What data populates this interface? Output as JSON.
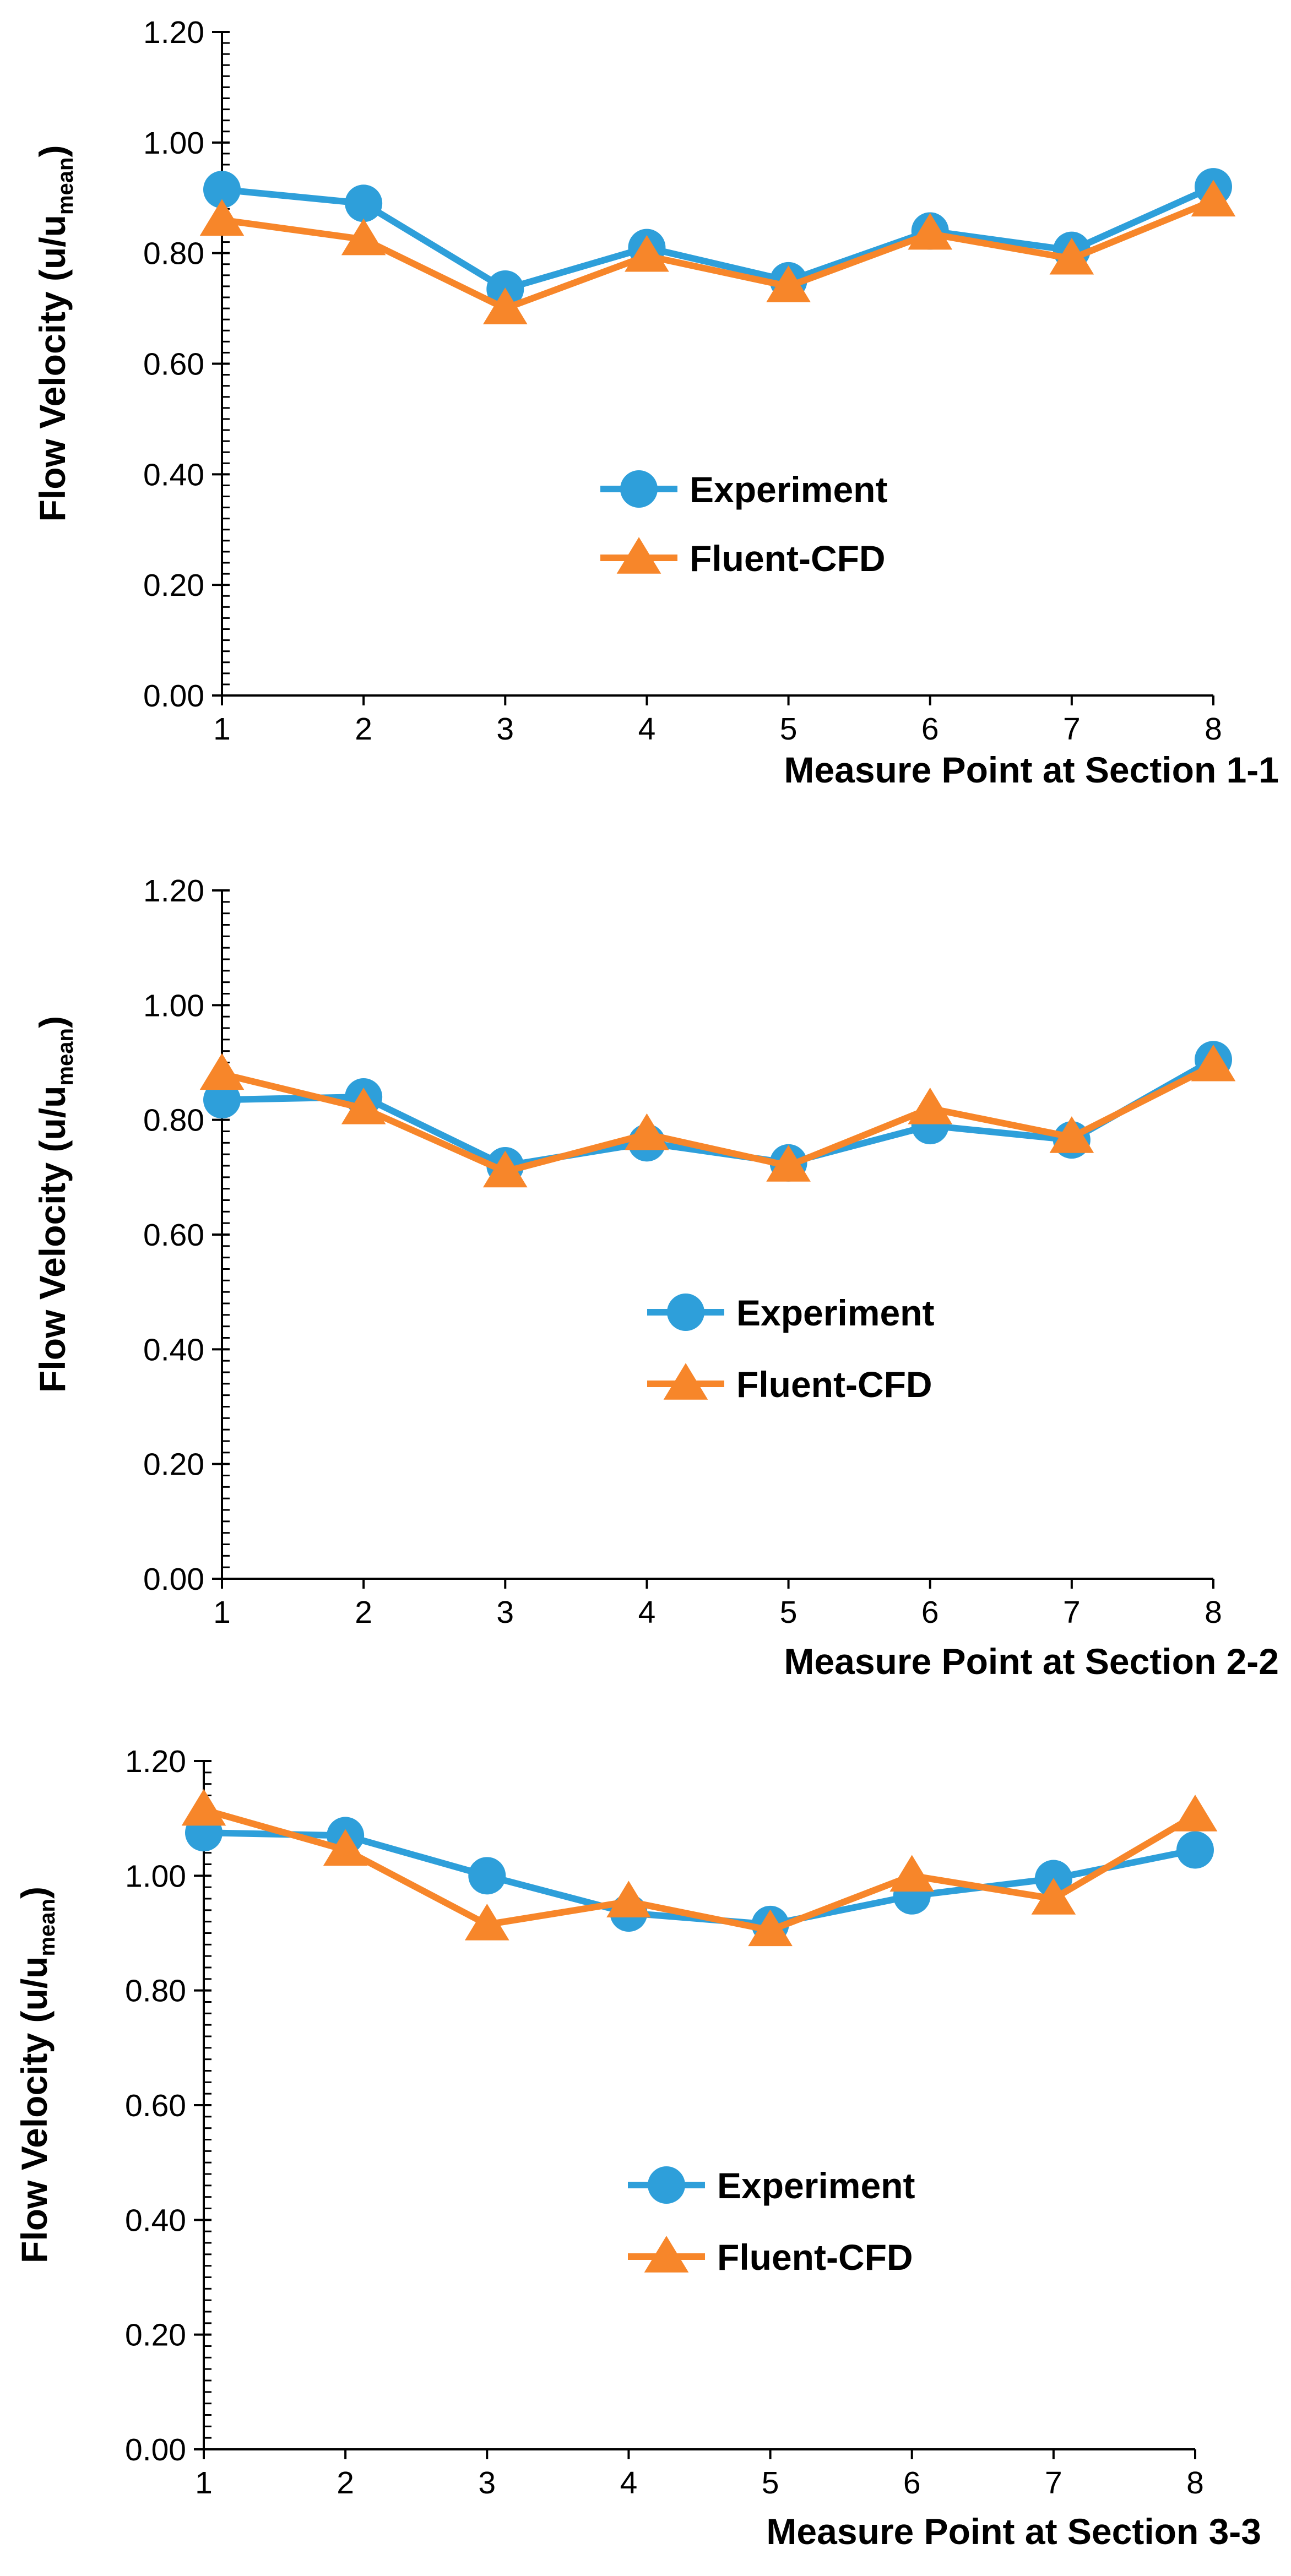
{
  "colors": {
    "experiment": "#2E9FDA",
    "fluent_cfd": "#F7862A",
    "axis": "#000000",
    "background": "#FFFFFF"
  },
  "chart_data": [
    {
      "type": "line",
      "title": "",
      "xlabel": "Measure Point at Section 1-1",
      "ylabel_main": "Flow Velocity (u/u",
      "ylabel_sub": "mean",
      "ylabel_close": ")",
      "categories": [
        "1",
        "2",
        "3",
        "4",
        "5",
        "6",
        "7",
        "8"
      ],
      "ylim": [
        0,
        1.2
      ],
      "yticks": [
        "0.00",
        "0.20",
        "0.40",
        "0.60",
        "0.80",
        "1.00",
        "1.20"
      ],
      "legend_position": "center-right",
      "grid": false,
      "series": [
        {
          "name": "Experiment",
          "marker": "circle",
          "values": [
            0.915,
            0.89,
            0.735,
            0.81,
            0.75,
            0.84,
            0.805,
            0.92
          ]
        },
        {
          "name": "Fluent-CFD",
          "marker": "triangle",
          "values": [
            0.86,
            0.825,
            0.7,
            0.795,
            0.74,
            0.835,
            0.79,
            0.895
          ]
        }
      ]
    },
    {
      "type": "line",
      "title": "",
      "xlabel": "Measure Point at Section 2-2",
      "ylabel_main": "Flow Velocity (u/u",
      "ylabel_sub": "mean",
      "ylabel_close": ")",
      "categories": [
        "1",
        "2",
        "3",
        "4",
        "5",
        "6",
        "7",
        "8"
      ],
      "ylim": [
        0,
        1.2
      ],
      "yticks": [
        "0.00",
        "0.20",
        "0.40",
        "0.60",
        "0.80",
        "1.00",
        "1.20"
      ],
      "legend_position": "center-right",
      "grid": false,
      "series": [
        {
          "name": "Experiment",
          "marker": "circle",
          "values": [
            0.835,
            0.84,
            0.72,
            0.76,
            0.725,
            0.79,
            0.765,
            0.905
          ]
        },
        {
          "name": "Fluent-CFD",
          "marker": "triangle",
          "values": [
            0.88,
            0.82,
            0.71,
            0.775,
            0.72,
            0.82,
            0.77,
            0.895
          ]
        }
      ]
    },
    {
      "type": "line",
      "title": "",
      "xlabel": "Measure Point at Section 3-3",
      "ylabel_main": "Flow Velocity (u/u",
      "ylabel_sub": "mean",
      "ylabel_close": ")",
      "categories": [
        "1",
        "2",
        "3",
        "4",
        "5",
        "6",
        "7",
        "8"
      ],
      "ylim": [
        0,
        1.2
      ],
      "yticks": [
        "0.00",
        "0.20",
        "0.40",
        "0.60",
        "0.80",
        "1.00",
        "1.20"
      ],
      "legend_position": "center-right",
      "grid": false,
      "series": [
        {
          "name": "Experiment",
          "marker": "circle",
          "values": [
            1.075,
            1.07,
            1.0,
            0.935,
            0.915,
            0.965,
            0.995,
            1.045
          ]
        },
        {
          "name": "Fluent-CFD",
          "marker": "triangle",
          "values": [
            1.115,
            1.045,
            0.915,
            0.955,
            0.905,
            1.0,
            0.96,
            1.105
          ]
        }
      ]
    }
  ]
}
